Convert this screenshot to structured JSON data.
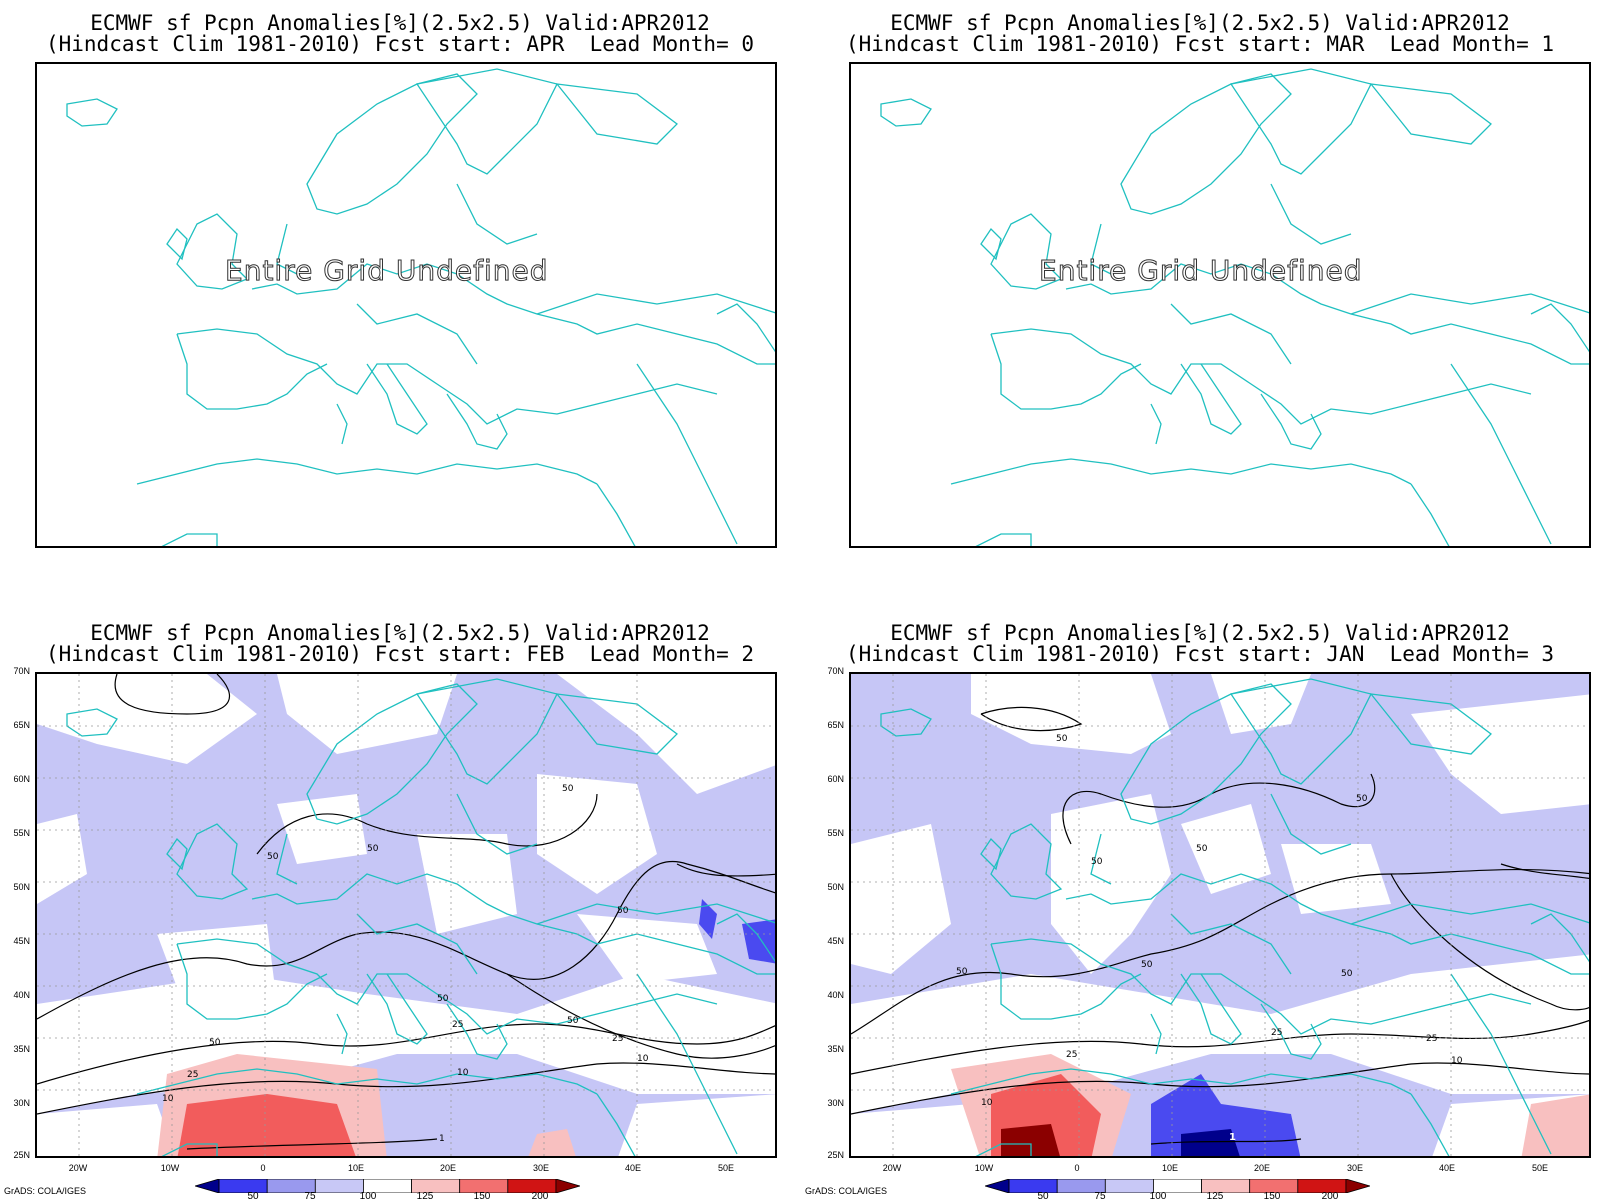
{
  "panels": [
    {
      "title_line1": "ECMWF sf Pcpn Anomalies[%](2.5x2.5) Valid:APR2012",
      "title_line2": "(Hindcast Clim 1981-2010) Fcst start: APR  Lead Month= 0",
      "undefined_text": "Entire Grid Undefined",
      "has_data": false
    },
    {
      "title_line1": "ECMWF sf Pcpn Anomalies[%](2.5x2.5) Valid:APR2012",
      "title_line2": "(Hindcast Clim 1981-2010) Fcst start: MAR  Lead Month= 1",
      "undefined_text": "Entire Grid Undefined",
      "has_data": false
    },
    {
      "title_line1": "ECMWF sf Pcpn Anomalies[%](2.5x2.5) Valid:APR2012",
      "title_line2": "(Hindcast Clim 1981-2010) Fcst start: FEB  Lead Month= 2",
      "has_data": true,
      "contour_labels": [
        "50",
        "50",
        "50",
        "50",
        "50",
        "50",
        "50",
        "25",
        "25",
        "25",
        "10",
        "10",
        "10",
        "1"
      ]
    },
    {
      "title_line1": "ECMWF sf Pcpn Anomalies[%](2.5x2.5) Valid:APR2012",
      "title_line2": "(Hindcast Clim 1981-2010) Fcst start: JAN  Lead Month= 3",
      "has_data": true,
      "contour_labels": [
        "50",
        "50",
        "50",
        "50",
        "50",
        "50",
        "50",
        "25",
        "25",
        "25",
        "10",
        "10",
        "1"
      ]
    }
  ],
  "axes": {
    "lat_labels": [
      "70N",
      "65N",
      "60N",
      "55N",
      "50N",
      "45N",
      "40N",
      "35N",
      "30N",
      "25N"
    ],
    "lon_labels": [
      "20W",
      "10W",
      "0",
      "10E",
      "20E",
      "30E",
      "40E",
      "50E"
    ]
  },
  "colorbar": {
    "ticks": [
      "50",
      "75",
      "100",
      "125",
      "150",
      "200"
    ],
    "colors": [
      "#00008b",
      "#3a3af0",
      "#9999ee",
      "#c8c8f6",
      "#ffffff",
      "#f8c0c0",
      "#f27070",
      "#d01414",
      "#8b0000"
    ]
  },
  "credit": "GrADS: COLA/IGES",
  "colors": {
    "coastline": "#20c0c0",
    "positive_light": "#f8c0c0",
    "positive_mid": "#f25c5c",
    "negative_light": "#c6c6f6",
    "negative_mid": "#4a4af0"
  }
}
